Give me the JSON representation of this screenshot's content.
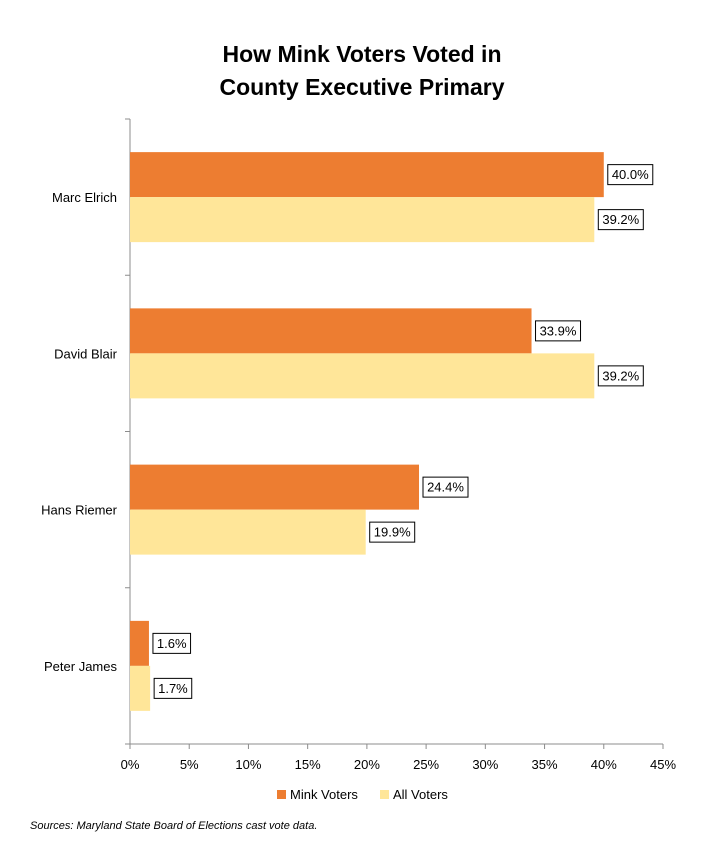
{
  "chart_data": {
    "type": "bar",
    "orientation": "horizontal",
    "title_lines": [
      "How Mink Voters Voted in",
      "County Executive Primary"
    ],
    "categories": [
      "Marc Elrich",
      "David Blair",
      "Hans Riemer",
      "Peter James"
    ],
    "series": [
      {
        "name": "Mink Voters",
        "color": "#ED7D31",
        "values": [
          40.0,
          33.9,
          24.4,
          1.6
        ],
        "labels": [
          "40.0%",
          "33.9%",
          "24.4%",
          "1.6%"
        ]
      },
      {
        "name": "All Voters",
        "color": "#FFE699",
        "values": [
          39.2,
          39.2,
          19.9,
          1.7
        ],
        "labels": [
          "39.2%",
          "39.2%",
          "19.9%",
          "1.7%"
        ]
      }
    ],
    "xlim": [
      0,
      45
    ],
    "xticks": [
      0,
      5,
      10,
      15,
      20,
      25,
      30,
      35,
      40,
      45
    ],
    "xtick_labels": [
      "0%",
      "5%",
      "10%",
      "15%",
      "20%",
      "25%",
      "30%",
      "35%",
      "40%",
      "45%"
    ],
    "grid": false,
    "legend_position": "bottom",
    "source_note": "Sources: Maryland State Board of Elections cast vote data."
  }
}
